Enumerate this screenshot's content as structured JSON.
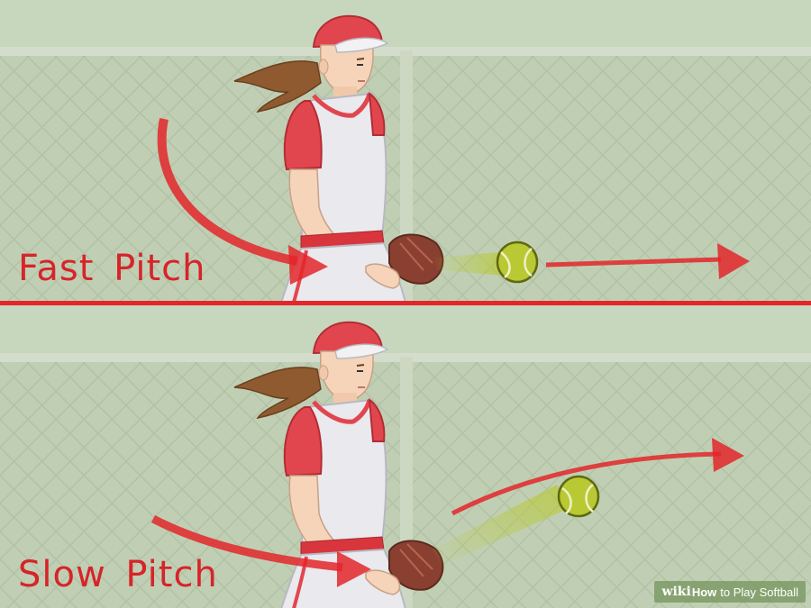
{
  "colors": {
    "sky": "#c7d7bd",
    "fence": "#b4c4a7",
    "accent_red": "#e3262a",
    "ball": "#b9c934",
    "jersey_sleeve": "#e1464f",
    "jersey_body": "#e9e9ee",
    "skin": "#f6d4b9",
    "hair": "#8f5a2f",
    "glove": "#8a4030"
  },
  "panels": [
    {
      "label": "Fast Pitch",
      "icons": [
        "softball-icon",
        "curved-arrow-icon",
        "straight-arrow-icon"
      ]
    },
    {
      "label": "Slow Pitch",
      "icons": [
        "softball-icon",
        "curved-arrow-icon",
        "arc-arrow-icon"
      ]
    }
  ],
  "watermark": {
    "wiki": "wiki",
    "how": "How",
    "title": "to Play Softball"
  }
}
